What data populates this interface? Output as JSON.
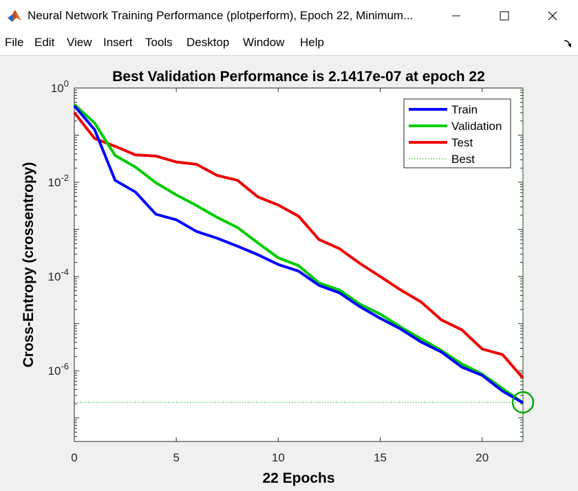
{
  "window": {
    "title": "Neural Network Training Performance (plotperform), Epoch 22, Minimum...",
    "minimize_glyph": "—",
    "maximize_glyph": "☐",
    "close_glyph": "✕",
    "icon": "matlab-logo-icon"
  },
  "menu": {
    "items": [
      "File",
      "Edit",
      "View",
      "Insert",
      "Tools",
      "Desktop",
      "Window",
      "Help"
    ],
    "dock_icon": "undock-arrow-icon"
  },
  "colors": {
    "train": "#0000ff",
    "validation": "#00cc00",
    "test": "#ee0000",
    "best": "#00aa00",
    "figure_bg": "#f0f0f0"
  },
  "chart_data": {
    "type": "line",
    "title": "Best Validation Performance is 2.1417e-07 at epoch 22",
    "xlabel": "22 Epochs",
    "ylabel": "Cross-Entropy  (crossentropy)",
    "xlim": [
      0,
      22
    ],
    "ylim_log10": [
      -7.5,
      0
    ],
    "yscale": "log",
    "x_ticks": [
      0,
      5,
      10,
      15,
      20
    ],
    "y_ticks": [
      {
        "base": "10",
        "exp": "0",
        "log": 0
      },
      {
        "base": "10",
        "exp": "-2",
        "log": -2
      },
      {
        "base": "10",
        "exp": "-4",
        "log": -4
      },
      {
        "base": "10",
        "exp": "-6",
        "log": -6
      }
    ],
    "grid": false,
    "legend_position": "top-right",
    "x": [
      0,
      1,
      2,
      3,
      4,
      5,
      6,
      7,
      8,
      9,
      10,
      11,
      12,
      13,
      14,
      15,
      16,
      17,
      18,
      19,
      20,
      21,
      22
    ],
    "series": [
      {
        "name": "Train",
        "values": [
          0.42,
          0.13,
          0.011,
          0.0062,
          0.0021,
          0.0016,
          0.0009,
          0.00065,
          0.00044,
          0.00029,
          0.00018,
          0.00013,
          6.5e-05,
          4.5e-05,
          2.3e-05,
          1.3e-05,
          7.7e-06,
          4.1e-06,
          2.5e-06,
          1.2e-06,
          8e-07,
          3.7e-07,
          2.1e-07
        ]
      },
      {
        "name": "Validation",
        "values": [
          0.45,
          0.18,
          0.037,
          0.021,
          0.0098,
          0.0054,
          0.0032,
          0.0018,
          0.0011,
          0.00052,
          0.00025,
          0.00017,
          7.3e-05,
          5.2e-05,
          2.6e-05,
          1.6e-05,
          8.5e-06,
          4.8e-06,
          2.7e-06,
          1.4e-06,
          8.5e-07,
          4.2e-07,
          2.1e-07
        ]
      },
      {
        "name": "Test",
        "values": [
          0.3,
          0.085,
          0.058,
          0.038,
          0.036,
          0.027,
          0.024,
          0.014,
          0.011,
          0.0049,
          0.0033,
          0.0019,
          0.00061,
          0.00039,
          0.00019,
          0.0001,
          5.2e-05,
          2.9e-05,
          1.2e-05,
          7.4e-06,
          2.9e-06,
          2.2e-06,
          7e-07
        ]
      },
      {
        "name": "Best",
        "best_epoch": 22,
        "best_value": 2.1417e-07
      }
    ]
  }
}
